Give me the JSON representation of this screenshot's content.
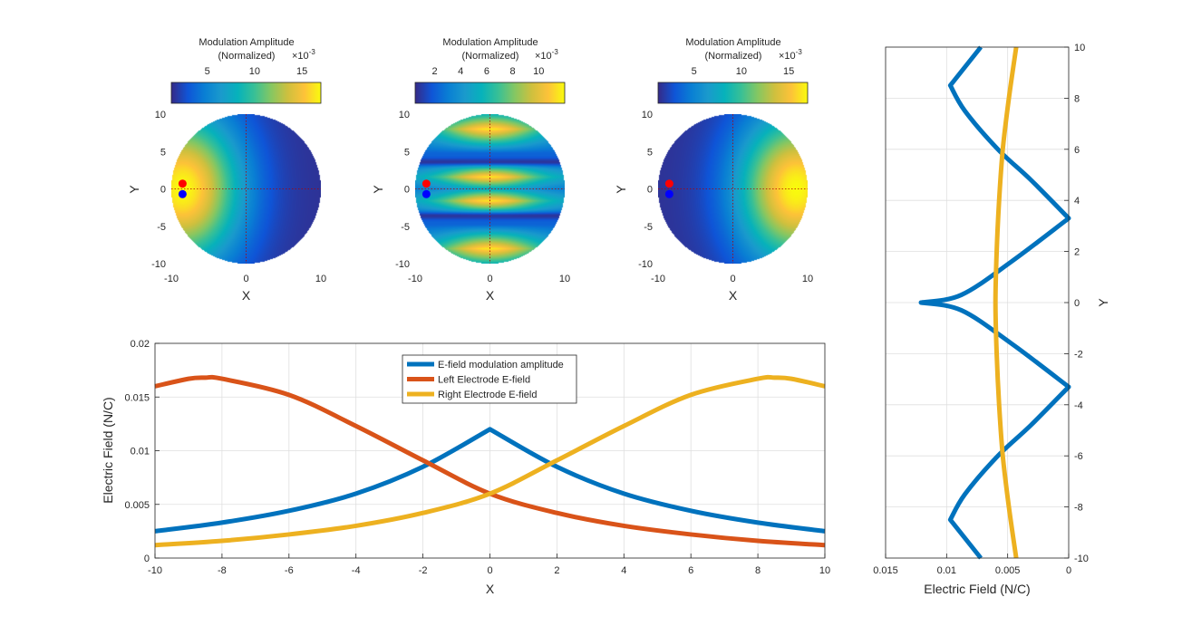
{
  "colors": {
    "blue": "#0072BD",
    "orange": "#D95319",
    "yellow": "#EDB120",
    "grid": "#DFDFDF",
    "axes": "#262626",
    "electrode_top": "#FF0000",
    "electrode_bottom": "#0000FF"
  },
  "chart_data": [
    {
      "type": "heatmap",
      "colormap": "parula",
      "colorbar": {
        "title_line1": "Modulation Amplitude",
        "title_line2": "(Normalized)",
        "exponent_base": "×10",
        "exponent": "-3",
        "ticks": [
          5,
          10,
          15
        ],
        "range": [
          1.2,
          17
        ]
      },
      "xlabel": "X",
      "ylabel": "Y",
      "xlim": [
        -10,
        10
      ],
      "ylim": [
        -10,
        10
      ],
      "xticks": [
        -10,
        0,
        10
      ],
      "yticks": [
        -10,
        -5,
        0,
        5,
        10
      ],
      "field_pattern": "left_peak",
      "electrodes": [
        {
          "x": -8.5,
          "y": 0.7
        },
        {
          "x": -8.5,
          "y": -0.7
        }
      ]
    },
    {
      "type": "heatmap",
      "colormap": "parula",
      "colorbar": {
        "title_line1": "Modulation Amplitude",
        "title_line2": "(Normalized)",
        "exponent_base": "×10",
        "exponent": "-3",
        "ticks": [
          2,
          4,
          6,
          8,
          10
        ],
        "range": [
          0.5,
          12
        ]
      },
      "xlabel": "X",
      "ylabel": "Y",
      "xlim": [
        -10,
        10
      ],
      "ylim": [
        -10,
        10
      ],
      "xticks": [
        -10,
        0,
        10
      ],
      "yticks": [
        -10,
        -5,
        0,
        5,
        10
      ],
      "field_pattern": "banded",
      "electrodes": [
        {
          "x": -8.5,
          "y": 0.7
        },
        {
          "x": -8.5,
          "y": -0.7
        }
      ]
    },
    {
      "type": "heatmap",
      "colormap": "parula",
      "colorbar": {
        "title_line1": "Modulation Amplitude",
        "title_line2": "(Normalized)",
        "exponent_base": "×10",
        "exponent": "-3",
        "ticks": [
          5,
          10,
          15
        ],
        "range": [
          1.2,
          17
        ]
      },
      "xlabel": "X",
      "ylabel": "Y",
      "xlim": [
        -10,
        10
      ],
      "ylim": [
        -10,
        10
      ],
      "xticks": [
        -10,
        0,
        10
      ],
      "yticks": [
        -10,
        -5,
        0,
        5,
        10
      ],
      "field_pattern": "right_peak",
      "electrodes": [
        {
          "x": -8.5,
          "y": 0.7
        },
        {
          "x": -8.5,
          "y": -0.7
        }
      ]
    },
    {
      "type": "line",
      "xlabel": "X",
      "ylabel": "Electric Field (N/C)",
      "xlim": [
        -10,
        10
      ],
      "ylim": [
        0,
        0.02
      ],
      "xticks": [
        -10,
        -8,
        -6,
        -4,
        -2,
        0,
        2,
        4,
        6,
        8,
        10
      ],
      "yticks": [
        0,
        0.005,
        0.01,
        0.015,
        0.02
      ],
      "ytick_labels": [
        "0",
        "0.005",
        "0.01",
        "0.015",
        "0.02"
      ],
      "grid": true,
      "legend_position": "top-center",
      "series": [
        {
          "name": "E-field modulation amplitude",
          "color": "#0072BD",
          "x": [
            -10,
            -8,
            -6,
            -4,
            -2,
            0,
            2,
            4,
            6,
            8,
            10
          ],
          "y": [
            0.0025,
            0.0033,
            0.0044,
            0.006,
            0.0085,
            0.012,
            0.0085,
            0.006,
            0.0044,
            0.0033,
            0.0025
          ]
        },
        {
          "name": "Left Electrode E-field",
          "color": "#D95319",
          "x": [
            -10,
            -9,
            -8.5,
            -8,
            -6,
            -4,
            -2,
            0,
            2,
            4,
            6,
            8,
            10
          ],
          "y": [
            0.016,
            0.0167,
            0.0168,
            0.0167,
            0.0152,
            0.0123,
            0.0091,
            0.006,
            0.0042,
            0.003,
            0.0022,
            0.0016,
            0.0012
          ]
        },
        {
          "name": "Right Electrode E-field",
          "color": "#EDB120",
          "x": [
            -10,
            -8,
            -6,
            -4,
            -2,
            0,
            2,
            4,
            6,
            8,
            8.5,
            9,
            10
          ],
          "y": [
            0.0012,
            0.0016,
            0.0022,
            0.003,
            0.0042,
            0.006,
            0.0091,
            0.0123,
            0.0152,
            0.0167,
            0.0168,
            0.0167,
            0.016
          ]
        }
      ]
    },
    {
      "type": "line",
      "xlabel": "Electric Field (N/C)",
      "ylabel": "Y",
      "xlim": [
        0,
        0.015
      ],
      "x_direction": "reversed",
      "y_axis_location": "right",
      "ylim": [
        -10,
        10
      ],
      "xticks": [
        0.015,
        0.01,
        0.005,
        0
      ],
      "xtick_labels": [
        "0.015",
        "0.01",
        "0.005",
        "0"
      ],
      "yticks": [
        -10,
        -8,
        -6,
        -4,
        -2,
        0,
        2,
        4,
        6,
        8,
        10
      ],
      "grid": true,
      "series": [
        {
          "name": "",
          "color": "#0072BD",
          "x": [
            0.0072,
            0.0097,
            0.0085,
            0.0058,
            0.0031,
            0.0,
            0.0047,
            0.0088,
            0.0121,
            0.0088,
            0.0047,
            0.0,
            0.0031,
            0.0058,
            0.0085,
            0.0097,
            0.0072
          ],
          "y": [
            -10,
            -8.5,
            -7.5,
            -6,
            -4.8,
            -3.3,
            -1.6,
            -0.3,
            0,
            0.3,
            1.6,
            3.3,
            4.8,
            6,
            7.5,
            8.5,
            10
          ]
        },
        {
          "name": "",
          "color": "#EDB120",
          "x": [
            0.0043,
            0.0049,
            0.0054,
            0.0057,
            0.0059,
            0.006,
            0.0059,
            0.0057,
            0.0054,
            0.0049,
            0.0043
          ],
          "y": [
            -10,
            -8,
            -6,
            -4,
            -2,
            0,
            2,
            4,
            6,
            8,
            10
          ]
        }
      ]
    }
  ]
}
